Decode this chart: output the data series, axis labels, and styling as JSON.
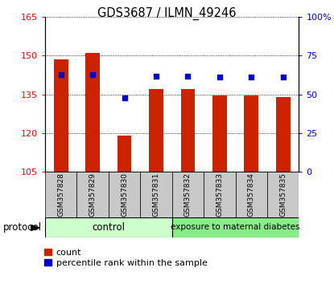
{
  "title": "GDS3687 / ILMN_49246",
  "samples": [
    "GSM357828",
    "GSM357829",
    "GSM357830",
    "GSM357831",
    "GSM357832",
    "GSM357833",
    "GSM357834",
    "GSM357835"
  ],
  "bar_values": [
    148.5,
    151.0,
    119.0,
    137.0,
    137.0,
    134.5,
    134.5,
    134.0
  ],
  "dot_values": [
    63,
    63,
    48,
    62,
    62,
    61,
    61,
    61
  ],
  "ylim_left": [
    105,
    165
  ],
  "ylim_right": [
    0,
    100
  ],
  "yticks_left": [
    105,
    120,
    135,
    150,
    165
  ],
  "yticks_right": [
    0,
    25,
    50,
    75,
    100
  ],
  "ytick_labels_right": [
    "0",
    "25",
    "50",
    "75",
    "100%"
  ],
  "bar_color": "#cc2200",
  "dot_color": "#0000cc",
  "control_samples": 4,
  "group_labels": [
    "control",
    "exposure to maternal diabetes"
  ],
  "control_color": "#ccffcc",
  "exposure_color": "#88ee88",
  "label_area_color": "#c8c8c8",
  "protocol_label": "protocol",
  "legend_items": [
    "count",
    "percentile rank within the sample"
  ],
  "bg_color": "#ffffff"
}
